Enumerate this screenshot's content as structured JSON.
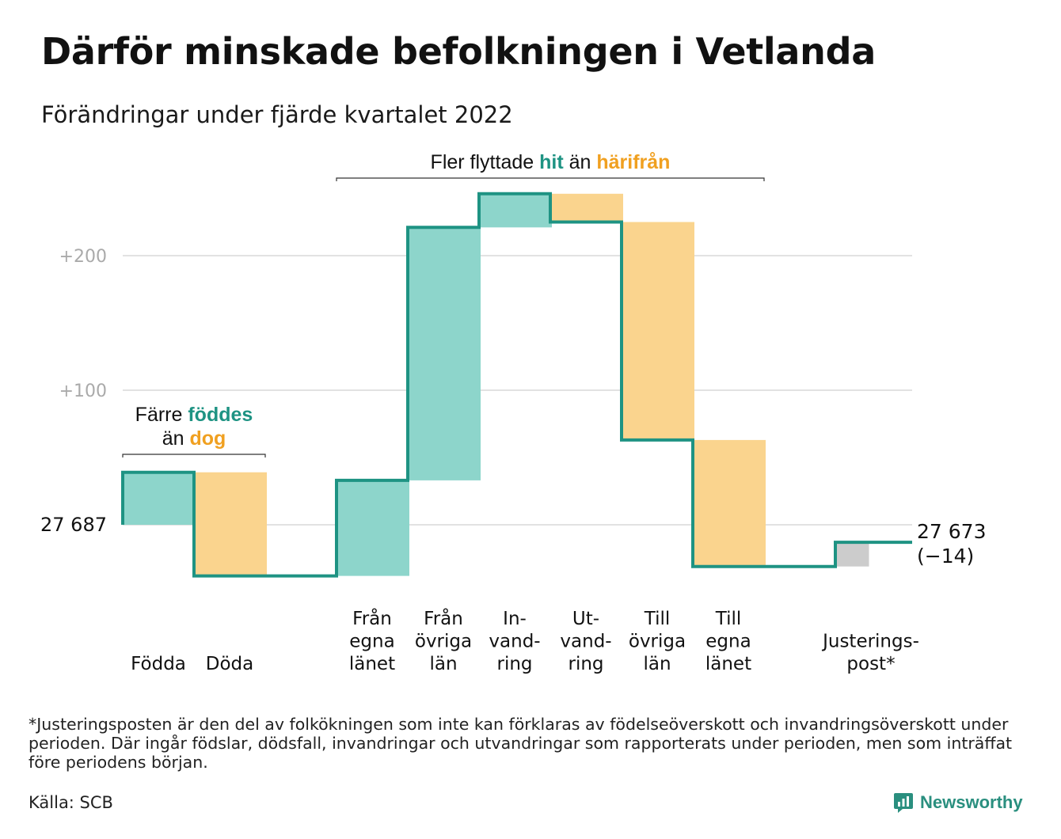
{
  "title": "Därför minskade befolkningen i Vetlanda",
  "subtitle": "Förändringar under fjärde kvartalet 2022",
  "footnote": "*Justeringsposten är den del av folkökningen som inte kan förklaras av födelseöverskott och invandringsöverskott under perioden. Där ingår födslar, dödsfall, invandringar och utvandringar som rapporterats under perioden, men som inträffat före periodens början.",
  "source": "Källa: SCB",
  "brand": "Newsworthy",
  "colors": {
    "increase": "#8dd5cb",
    "decrease": "#fad48e",
    "adjustment": "#cccccc",
    "line": "#1e9383",
    "hit": "#1e9383",
    "harifran": "#f0a020",
    "grid": "#e2e2e2",
    "tick": "#aaaaaa"
  },
  "chart_data": {
    "type": "waterfall",
    "start_value": 27687,
    "start_label": "27 687",
    "end_label": "27 673",
    "change_label": "(−14)",
    "y_ticks": [
      {
        "value": 100,
        "label": "+100"
      },
      {
        "value": 200,
        "label": "+200"
      }
    ],
    "ylim": [
      -50,
      245
    ],
    "bars": [
      {
        "label": [
          "Födda"
        ],
        "value": 39,
        "kind": "increase"
      },
      {
        "label": [
          "Döda"
        ],
        "value": -77,
        "kind": "decrease"
      },
      {
        "label": [
          "Från",
          "egna",
          "länet"
        ],
        "value": 71,
        "kind": "increase",
        "gap_before": true
      },
      {
        "label": [
          "Från",
          "övriga",
          "län"
        ],
        "value": 188,
        "kind": "increase"
      },
      {
        "label": [
          "In-",
          "vand-",
          "ring"
        ],
        "value": 25,
        "kind": "increase"
      },
      {
        "label": [
          "Ut-",
          "vand-",
          "ring"
        ],
        "value": -21,
        "kind": "decrease"
      },
      {
        "label": [
          "Till",
          "övriga",
          "län"
        ],
        "value": -162,
        "kind": "decrease"
      },
      {
        "label": [
          "Till",
          "egna",
          "länet"
        ],
        "value": -94,
        "kind": "decrease"
      },
      {
        "label": [
          "Justerings-",
          "post*"
        ],
        "value": 18,
        "kind": "adjustment",
        "gap_before": true
      }
    ],
    "annotations": [
      {
        "bars": [
          0,
          1
        ],
        "lines": [
          [
            {
              "text": "Färre ",
              "color": "text"
            },
            {
              "text": "föddes",
              "color": "hit",
              "bold": true
            }
          ],
          [
            {
              "text": "än ",
              "color": "text"
            },
            {
              "text": "dog",
              "color": "harifran",
              "bold": true
            }
          ]
        ]
      },
      {
        "bars": [
          2,
          7
        ],
        "lines": [
          [
            {
              "text": "Fler flyttade ",
              "color": "text"
            },
            {
              "text": "hit",
              "color": "hit",
              "bold": true
            },
            {
              "text": " än ",
              "color": "text"
            },
            {
              "text": "härifrån",
              "color": "harifran",
              "bold": true
            }
          ]
        ]
      }
    ]
  }
}
